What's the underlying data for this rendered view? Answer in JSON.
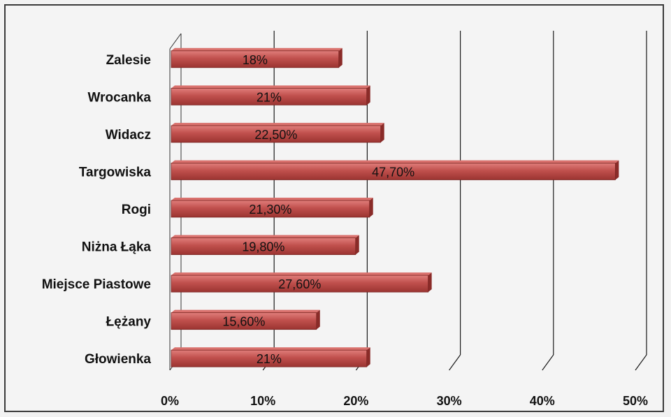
{
  "chart_data": {
    "type": "bar",
    "orientation": "horizontal",
    "categories": [
      "Zalesie",
      "Wrocanka",
      "Widacz",
      "Targowiska",
      "Rogi",
      "Niżna Łąka",
      "Miejsce Piastowe",
      "Łężany",
      "Głowienka"
    ],
    "values": [
      18,
      21,
      22.5,
      47.7,
      21.3,
      19.8,
      27.6,
      15.6,
      21
    ],
    "data_labels": [
      "18%",
      "21%",
      "22,50%",
      "47,70%",
      "21,30%",
      "19,80%",
      "27,60%",
      "15,60%",
      "21%"
    ],
    "x_ticks": [
      0,
      10,
      20,
      30,
      40,
      50
    ],
    "x_tick_labels": [
      "0%",
      "10%",
      "20%",
      "30%",
      "40%",
      "50%"
    ],
    "xlim": [
      0,
      50
    ],
    "title": "",
    "xlabel": "",
    "ylabel": "",
    "grid": true,
    "legend": "none",
    "colors": {
      "bar": "#c0504d",
      "bar_dark": "#8a2b28",
      "grid": "#1a1a1a",
      "background": "#f4f4f4"
    }
  }
}
